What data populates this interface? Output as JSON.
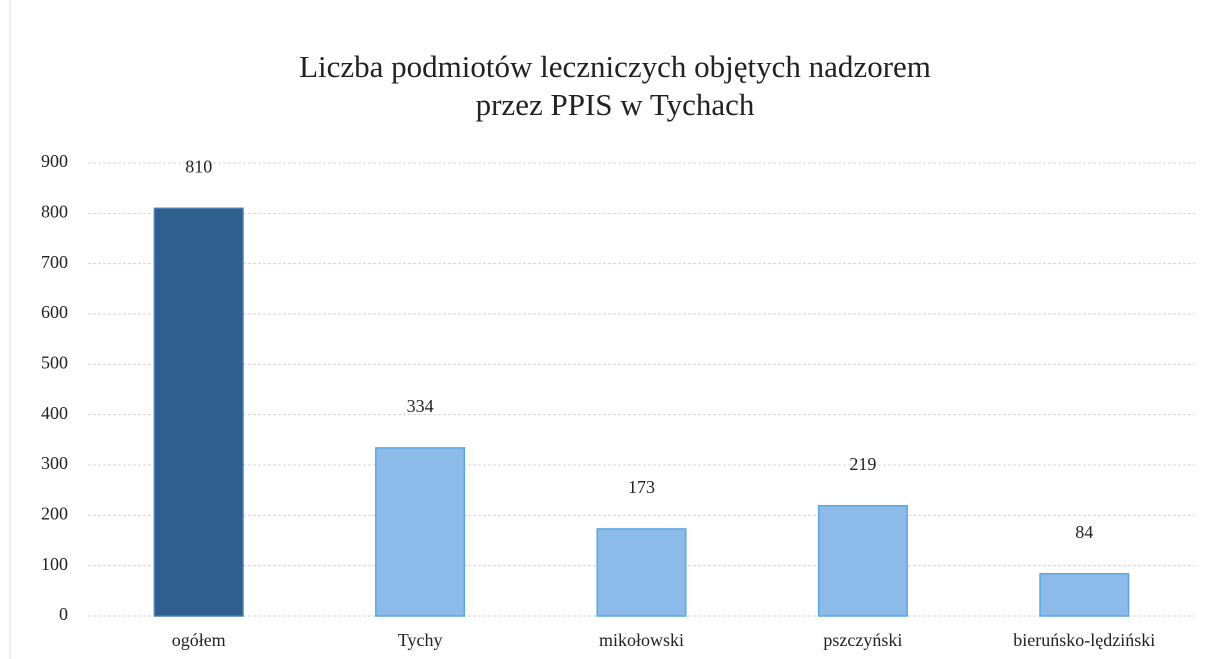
{
  "chart_data": {
    "type": "bar",
    "title": [
      "Liczba podmiotów leczniczych objętych nadzorem",
      "przez PPIS w Tychach"
    ],
    "categories": [
      "ogółem",
      "Tychy",
      "mikołowski",
      "pszczyński",
      "bieruńsko-lędziński"
    ],
    "values": [
      810,
      334,
      173,
      219,
      84
    ],
    "colors": [
      "#2f5f8e",
      "#8dbbe9",
      "#8dbbe9",
      "#8dbbe9",
      "#8dbbe9"
    ],
    "ylim": [
      0,
      900
    ],
    "yticks": [
      0,
      100,
      200,
      300,
      400,
      500,
      600,
      700,
      800,
      900
    ],
    "grid": true
  }
}
